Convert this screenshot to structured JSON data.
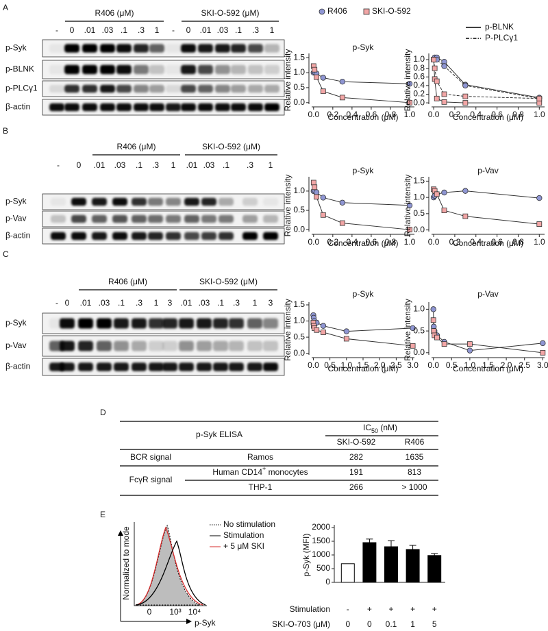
{
  "panel_labels": [
    "A",
    "B",
    "C",
    "D",
    "E"
  ],
  "blots": [
    {
      "groups": [
        "R406 (μM)",
        "SKI-O-592 (μM)"
      ],
      "lanes": [
        "-",
        "0",
        ".01",
        ".03",
        ".1",
        ".3",
        "1",
        "-",
        "0",
        ".01",
        ".03",
        ".1",
        ".3",
        "1"
      ],
      "rows": [
        "p-Syk",
        "p-BLNK",
        "p-PLCγ1",
        "β-actin"
      ]
    },
    {
      "groups": [
        "R406 (μM)",
        "SKI-O-592 (μM)"
      ],
      "lanes": [
        "-",
        "0",
        ".01",
        ".03",
        ".1",
        ".3",
        "1",
        ".01",
        ".03",
        ".1",
        ".3",
        "1"
      ],
      "rows": [
        "p-Syk",
        "p-Vav",
        "β-actin"
      ]
    },
    {
      "groups": [
        "R406 (μM)",
        "SKI-O-592 (μM)"
      ],
      "lanes": [
        "-",
        "0",
        ".01",
        ".03",
        ".1",
        ".3",
        "1",
        "3",
        ".01",
        ".03",
        ".1",
        ".3",
        "1",
        "3"
      ],
      "rows": [
        "p-Syk",
        "p-Vav",
        "β-actin"
      ]
    }
  ],
  "chart_data": [
    {
      "type": "line",
      "title": "p-Syk",
      "xlabel": "Concentration (μM)",
      "ylabel": "Relative intensity",
      "x": [
        0,
        0.01,
        0.03,
        0.1,
        0.3,
        1
      ],
      "xlim": [
        -0.02,
        1.05
      ],
      "xticks": [
        {
          "value": 0,
          "label": "0.0"
        },
        0.2,
        0.4,
        0.6,
        0.8,
        {
          "value": 1,
          "label": "1.0"
        }
      ],
      "ylim": [
        -0.05,
        1.55
      ],
      "yticks": [
        {
          "value": 0,
          "label": "0.0"
        },
        0.5,
        {
          "value": 1,
          "label": "1.0"
        },
        1.5
      ],
      "series": [
        {
          "name": "R406",
          "color": "#8f96d3",
          "marker": "circle",
          "values": [
            1.0,
            1.02,
            0.97,
            0.83,
            0.7,
            0.63
          ]
        },
        {
          "name": "SKI-O-592",
          "color": "#f2a6a6",
          "marker": "square",
          "values": [
            1.22,
            1.1,
            0.85,
            0.38,
            0.17,
            0.0
          ]
        }
      ]
    },
    {
      "type": "line",
      "xlabel": "Concentration (μM)",
      "ylabel": "Relative intensity",
      "x": [
        0,
        0.01,
        0.03,
        0.1,
        0.3,
        1
      ],
      "xlim": [
        -0.02,
        1.05
      ],
      "xticks": [
        {
          "value": 0,
          "label": "0.0"
        },
        0.2,
        0.4,
        0.6,
        0.8,
        {
          "value": 1,
          "label": "1.0"
        }
      ],
      "ylim": [
        -0.03,
        1.08
      ],
      "yticks": [
        {
          "value": 0,
          "label": "0.0"
        },
        0.2,
        0.4,
        0.6,
        0.8,
        {
          "value": 1,
          "label": "1.0"
        }
      ],
      "line_legend": [
        {
          "label": "p-BLNK",
          "dash": false
        },
        {
          "label": "P-PLCγ1",
          "dash": true
        }
      ],
      "series": [
        {
          "color": "#8f96d3",
          "marker": "circle",
          "style": 0,
          "values": [
            1.0,
            1.05,
            1.05,
            0.95,
            0.42,
            0.12
          ]
        },
        {
          "color": "#8f96d3",
          "marker": "circle",
          "style": 1,
          "values": [
            1.0,
            1.0,
            1.0,
            0.85,
            0.4,
            0.1
          ]
        },
        {
          "color": "#f2a6a6",
          "marker": "square",
          "style": 0,
          "values": [
            1.0,
            0.55,
            0.1,
            0.02,
            0.0,
            0.0
          ]
        },
        {
          "color": "#f2a6a6",
          "marker": "square",
          "style": 1,
          "values": [
            1.0,
            0.8,
            0.5,
            0.2,
            0.15,
            0.1
          ]
        }
      ]
    },
    {
      "type": "line",
      "title": "p-Syk",
      "xlabel": "Concentration (μM)",
      "ylabel": "Relative intensity",
      "x": [
        0,
        0.01,
        0.03,
        0.1,
        0.3,
        1
      ],
      "xlim": [
        -0.02,
        1.05
      ],
      "xticks": [
        {
          "value": 0,
          "label": "0.0"
        },
        0.2,
        0.4,
        0.6,
        0.8,
        {
          "value": 1,
          "label": "1.0"
        }
      ],
      "ylim": [
        -0.05,
        1.3
      ],
      "yticks": [
        {
          "value": 0,
          "label": "0.0"
        },
        0.5,
        {
          "value": 1,
          "label": "1.0"
        }
      ],
      "series": [
        {
          "color": "#8f96d3",
          "marker": "circle",
          "values": [
            1.0,
            1.02,
            0.97,
            0.83,
            0.7,
            0.63
          ]
        },
        {
          "color": "#f2a6a6",
          "marker": "square",
          "values": [
            1.22,
            1.1,
            0.85,
            0.38,
            0.17,
            0.0
          ]
        }
      ]
    },
    {
      "type": "line",
      "title": "p-Vav",
      "xlabel": "Concentration (μM)",
      "ylabel": "Relative intensity",
      "x": [
        0,
        0.01,
        0.03,
        0.1,
        0.3,
        1
      ],
      "xlim": [
        -0.02,
        1.05
      ],
      "xticks": [
        {
          "value": 0,
          "label": "0.0"
        },
        0.2,
        0.4,
        0.6,
        0.8,
        {
          "value": 1,
          "label": "1.0"
        }
      ],
      "ylim": [
        -0.05,
        1.55
      ],
      "yticks": [
        {
          "value": 0,
          "label": "0.0"
        },
        0.5,
        {
          "value": 1,
          "label": "1.0"
        },
        1.5
      ],
      "series": [
        {
          "color": "#8f96d3",
          "marker": "circle",
          "values": [
            1.0,
            1.05,
            1.1,
            1.15,
            1.2,
            0.98
          ]
        },
        {
          "color": "#f2a6a6",
          "marker": "square",
          "values": [
            1.25,
            1.2,
            1.1,
            0.6,
            0.42,
            0.18
          ]
        }
      ]
    },
    {
      "type": "line",
      "title": "p-Syk",
      "xlabel": "Concentration (μM)",
      "ylabel": "Relative intensity",
      "x": [
        0,
        0.01,
        0.03,
        0.1,
        0.3,
        1,
        3
      ],
      "xlim": [
        -0.05,
        3.05
      ],
      "xticks": [
        {
          "value": 0,
          "label": "0.0"
        },
        0.5,
        {
          "value": 1,
          "label": "1.0"
        },
        1.5,
        {
          "value": 2,
          "label": "2.0"
        },
        2.5,
        {
          "value": 3,
          "label": "3.0"
        }
      ],
      "ylim": [
        -0.05,
        1.5
      ],
      "yticks": [
        {
          "value": 0,
          "label": "0.0"
        },
        0.5,
        {
          "value": 1,
          "label": "1.0"
        },
        1.5
      ],
      "series": [
        {
          "color": "#8f96d3",
          "marker": "circle",
          "values": [
            1.18,
            1.1,
            1.0,
            0.95,
            0.85,
            0.68,
            0.78
          ]
        },
        {
          "color": "#f2a6a6",
          "marker": "square",
          "values": [
            0.95,
            0.85,
            0.78,
            0.72,
            0.65,
            0.45,
            0.23
          ]
        }
      ]
    },
    {
      "type": "line",
      "title": "p-Vav",
      "xlabel": "Concentration (μM)",
      "ylabel": "Relative intensity",
      "x": [
        0,
        0.01,
        0.03,
        0.1,
        0.3,
        1,
        3
      ],
      "xlim": [
        -0.05,
        3.05
      ],
      "xticks": [
        {
          "value": 0,
          "label": "0.0"
        },
        0.5,
        {
          "value": 1,
          "label": "1.0"
        },
        1.5,
        {
          "value": 2,
          "label": "2.0"
        },
        2.5,
        {
          "value": 3,
          "label": "3.0"
        }
      ],
      "ylim": [
        -0.05,
        1.1
      ],
      "yticks": [
        {
          "value": 0,
          "label": "0.0"
        },
        0.5,
        {
          "value": 1,
          "label": "1.0"
        }
      ],
      "series": [
        {
          "color": "#8f96d3",
          "marker": "circle",
          "values": [
            1.0,
            0.6,
            0.5,
            0.4,
            0.25,
            0.05,
            0.22
          ]
        },
        {
          "color": "#f2a6a6",
          "marker": "square",
          "values": [
            0.75,
            0.5,
            0.4,
            0.35,
            0.2,
            0.2,
            0.0
          ]
        }
      ]
    },
    {
      "type": "bar",
      "ylabel": "p-Syk (MFI)",
      "ylim": [
        0,
        2000
      ],
      "yticks": [
        0,
        500,
        1000,
        1500,
        2000
      ],
      "values": [
        680,
        1450,
        1300,
        1200,
        980
      ],
      "errors": [
        null,
        130,
        220,
        150,
        70
      ],
      "colors": [
        "#ffffff",
        "#000000",
        "#000000",
        "#000000",
        "#000000"
      ],
      "conditions": [
        {
          "label": "Stimulation",
          "values": [
            "-",
            "+",
            "+",
            "+",
            "+"
          ]
        },
        {
          "label": "SKI-O-703 (μM)",
          "values": [
            "0",
            "0",
            "0.1",
            "1",
            "5"
          ]
        }
      ]
    }
  ],
  "table": {
    "header": {
      "assay": "p-Syk ELISA",
      "ic50": {
        "main": "IC",
        "sub": "50",
        "unit": " (nM)"
      },
      "columns": [
        "SKI-O-592",
        "R406"
      ]
    },
    "groups": [
      {
        "label": "BCR signal",
        "rows": [
          [
            "Ramos",
            282,
            1635
          ]
        ]
      },
      {
        "label": "FcγR signal",
        "rows": [
          [
            {
              "main": "Human CD14",
              "sup": "+",
              "rest": " monocytes"
            },
            191,
            813
          ],
          [
            "THP-1",
            266,
            "> 1000"
          ]
        ]
      }
    ]
  },
  "histogram": {
    "ylabel": "Normalized to mode",
    "xlabel": "p-Syk",
    "xticks": [
      "0",
      "10³",
      "10⁴"
    ],
    "legend": [
      "No stimulation",
      "Stimulation",
      "+ 5 μM SKI"
    ]
  }
}
